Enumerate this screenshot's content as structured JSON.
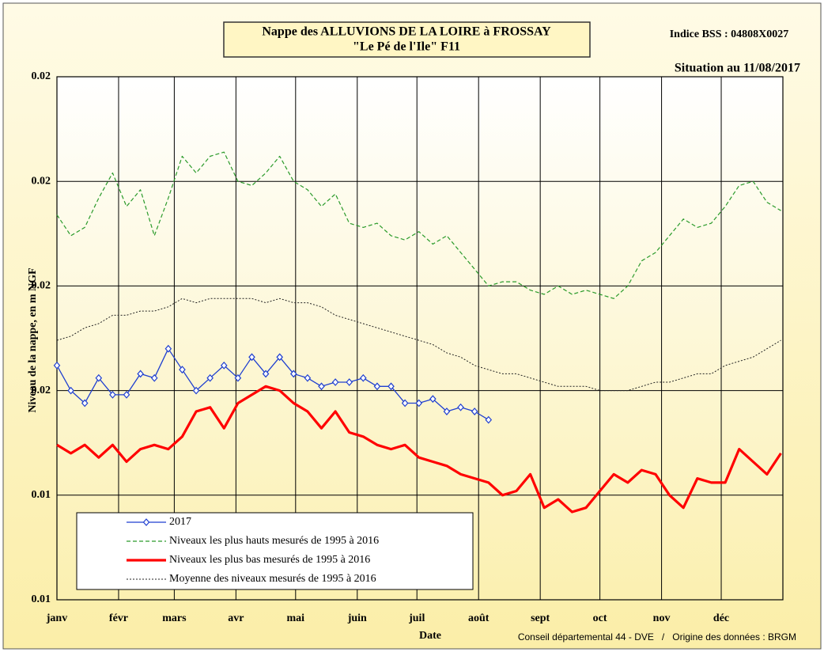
{
  "chart_data": {
    "type": "line",
    "title": "Nappe des ALLUVIONS DE LA LOIRE à FROSSAY",
    "subtitle": "\"Le Pé de l'Ile\" F11",
    "annotations": [
      "Indice BSS : 04808X0027",
      "Situation au 11/08/2017",
      "Conseil départemental 44 - DVE   /   Origine des données : BRGM"
    ],
    "xlabel": "Date",
    "ylabel": "Niveau de la nappe, en m NGF",
    "x": [
      0,
      7,
      14,
      21,
      28,
      35,
      42,
      49,
      56,
      63,
      70,
      77,
      84,
      91,
      98,
      105,
      112,
      119,
      126,
      133,
      140,
      147,
      154,
      161,
      168,
      175,
      182,
      189,
      196,
      203,
      210,
      217,
      224,
      231,
      238,
      245,
      252,
      259,
      266,
      273,
      280,
      287,
      294,
      301,
      308,
      315,
      322,
      329,
      336,
      343,
      350,
      357,
      364
    ],
    "xlim": [
      0,
      365
    ],
    "xticks": [
      {
        "value": 0,
        "label": "janv"
      },
      {
        "value": 31,
        "label": "févr"
      },
      {
        "value": 59,
        "label": "mars"
      },
      {
        "value": 90,
        "label": "avr"
      },
      {
        "value": 120,
        "label": "mai"
      },
      {
        "value": 151,
        "label": "juin"
      },
      {
        "value": 181,
        "label": "juil"
      },
      {
        "value": 212,
        "label": "août"
      },
      {
        "value": 243,
        "label": "sept"
      },
      {
        "value": 273,
        "label": "oct"
      },
      {
        "value": 304,
        "label": "nov"
      },
      {
        "value": 334,
        "label": "déc"
      }
    ],
    "ylim": [
      0.01,
      0.0225
    ],
    "yticks": [
      0.01,
      {
        "value": 0.0125,
        "label": "0.01"
      },
      {
        "value": 0.015,
        "label": "0.02"
      },
      {
        "value": 0.0175,
        "label": "0.02"
      },
      {
        "value": 0.02,
        "label": "0.02"
      },
      {
        "value": 0.0225,
        "label": "0.02"
      }
    ],
    "grid": true,
    "legend": "bottom-left",
    "series": [
      {
        "name": "2017",
        "color": "#1f3fd0",
        "linestyle": "solid",
        "marker": "diamond",
        "values": [
          0.0156,
          0.015,
          0.0147,
          0.0153,
          0.0149,
          0.0149,
          0.0154,
          0.0153,
          0.016,
          0.0155,
          0.015,
          0.0153,
          0.0156,
          0.0153,
          0.0158,
          0.0154,
          0.0158,
          0.0154,
          0.0153,
          0.0151,
          0.0152,
          0.0152,
          0.0153,
          0.0151,
          0.0151,
          0.0147,
          0.0147,
          0.0148,
          0.0145,
          0.0146,
          0.0145,
          0.0143,
          null,
          null,
          null,
          null,
          null,
          null,
          null,
          null,
          null,
          null,
          null,
          null,
          null,
          null,
          null,
          null,
          null,
          null,
          null,
          null,
          null
        ]
      },
      {
        "name": "Niveaux les plus hauts mesurés de 1995 à 2016",
        "color": "#2a9a2a",
        "linestyle": "dashed",
        "values": [
          0.0192,
          0.0187,
          0.0189,
          0.0196,
          0.0202,
          0.0194,
          0.0198,
          0.0187,
          0.0196,
          0.0206,
          0.0202,
          0.0206,
          0.0207,
          0.02,
          0.0199,
          0.0202,
          0.0206,
          0.02,
          0.0198,
          0.0194,
          0.0197,
          0.019,
          0.0189,
          0.019,
          0.0187,
          0.0186,
          0.0188,
          0.0185,
          0.0187,
          0.0183,
          0.0179,
          0.0175,
          0.0176,
          0.0176,
          0.0174,
          0.0173,
          0.0175,
          0.0173,
          0.0174,
          0.0173,
          0.0172,
          0.0175,
          0.0181,
          0.0183,
          0.0187,
          0.0191,
          0.0189,
          0.019,
          0.0194,
          0.0199,
          0.02,
          0.0195,
          0.0193
        ]
      },
      {
        "name": "Niveaux les plus bas mesurés de 1995 à 2016",
        "color": "#ff0000",
        "linestyle": "thick",
        "values": [
          0.0137,
          0.0135,
          0.0137,
          0.0134,
          0.0137,
          0.0133,
          0.0136,
          0.0137,
          0.0136,
          0.0139,
          0.0145,
          0.0146,
          0.0141,
          0.0147,
          0.0149,
          0.0151,
          0.015,
          0.0147,
          0.0145,
          0.0141,
          0.0145,
          0.014,
          0.0139,
          0.0137,
          0.0136,
          0.0137,
          0.0134,
          0.0133,
          0.0132,
          0.013,
          0.0129,
          0.0128,
          0.0125,
          0.0126,
          0.013,
          0.0122,
          0.0124,
          0.0121,
          0.0122,
          0.0126,
          0.013,
          0.0128,
          0.0131,
          0.013,
          0.0125,
          0.0122,
          0.0129,
          0.0128,
          0.0128,
          0.0136,
          0.0133,
          0.013,
          0.0135
        ]
      },
      {
        "name": "Moyenne des niveaux mesurés de 1995 à 2016",
        "color": "#222222",
        "linestyle": "dotted",
        "values": [
          0.0162,
          0.0163,
          0.0165,
          0.0166,
          0.0168,
          0.0168,
          0.0169,
          0.0169,
          0.017,
          0.0172,
          0.0171,
          0.0172,
          0.0172,
          0.0172,
          0.0172,
          0.0171,
          0.0172,
          0.0171,
          0.0171,
          0.017,
          0.0168,
          0.0167,
          0.0166,
          0.0165,
          0.0164,
          0.0163,
          0.0162,
          0.0161,
          0.0159,
          0.0158,
          0.0156,
          0.0155,
          0.0154,
          0.0154,
          0.0153,
          0.0152,
          0.0151,
          0.0151,
          0.0151,
          0.015,
          0.015,
          0.015,
          0.0151,
          0.0152,
          0.0152,
          0.0153,
          0.0154,
          0.0154,
          0.0156,
          0.0157,
          0.0158,
          0.016,
          0.0162
        ]
      }
    ]
  }
}
